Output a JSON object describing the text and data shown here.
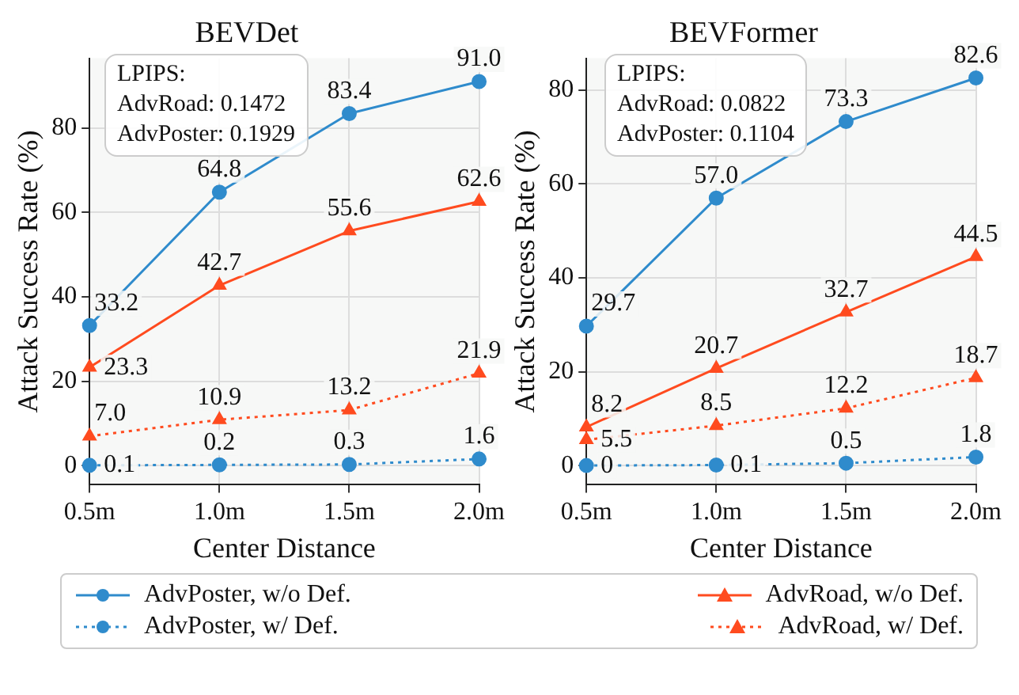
{
  "chart_data": [
    {
      "type": "line",
      "title": "BEVDet",
      "xlabel": "Center Distance",
      "ylabel": "Attack Success Rate (%)",
      "categories": [
        "0.5m",
        "1.0m",
        "1.5m",
        "2.0m"
      ],
      "ylim": [
        -4.5,
        96.5
      ],
      "yticks": [
        0,
        20,
        40,
        60,
        80
      ],
      "grid": true,
      "legend": "bottom",
      "data_labels": true,
      "annotations": [
        "LPIPS:\nAdvRoad: 0.1472\nAdvPoster: 0.1929"
      ],
      "series": [
        {
          "name": "AdvPoster, w/o Def.",
          "color": "#2f8bcc",
          "marker": "circle",
          "line_style": "solid",
          "values": [
            33.2,
            64.8,
            83.4,
            91.0
          ],
          "value_labels": [
            "33.2",
            "64.8",
            "83.4",
            "91.0"
          ]
        },
        {
          "name": "AdvPoster, w/ Def.",
          "color": "#2f8bcc",
          "marker": "circle",
          "line_style": "dotted",
          "values": [
            0.1,
            0.2,
            0.3,
            1.6
          ],
          "value_labels": [
            "0.1",
            "0.2",
            "0.3",
            "1.6"
          ]
        },
        {
          "name": "AdvRoad, w/o Def.",
          "color": "#ff4b1f",
          "marker": "triangle",
          "line_style": "solid",
          "values": [
            23.3,
            42.7,
            55.6,
            62.6
          ],
          "value_labels": [
            "23.3",
            "42.7",
            "55.6",
            "62.6"
          ]
        },
        {
          "name": "AdvRoad, w/ Def.",
          "color": "#ff4b1f",
          "marker": "triangle",
          "line_style": "dotted",
          "values": [
            7.0,
            10.9,
            13.2,
            21.9
          ],
          "value_labels": [
            "7.0",
            "10.9",
            "13.2",
            "21.9"
          ]
        }
      ]
    },
    {
      "type": "line",
      "title": "BEVFormer",
      "xlabel": "Center Distance",
      "ylabel": "Attack Success Rate (%)",
      "categories": [
        "0.5m",
        "1.0m",
        "1.5m",
        "2.0m"
      ],
      "ylim": [
        -4.1,
        86.8
      ],
      "yticks": [
        0,
        20,
        40,
        60,
        80
      ],
      "grid": true,
      "legend": "bottom",
      "data_labels": true,
      "annotations": [
        "LPIPS:\nAdvRoad: 0.0822\nAdvPoster: 0.1104"
      ],
      "series": [
        {
          "name": "AdvPoster, w/o Def.",
          "color": "#2f8bcc",
          "marker": "circle",
          "line_style": "solid",
          "values": [
            29.7,
            57.0,
            73.3,
            82.6
          ],
          "value_labels": [
            "29.7",
            "57.0",
            "73.3",
            "82.6"
          ]
        },
        {
          "name": "AdvPoster, w/ Def.",
          "color": "#2f8bcc",
          "marker": "circle",
          "line_style": "dotted",
          "values": [
            0,
            0.1,
            0.5,
            1.8
          ],
          "value_labels": [
            "0",
            "0.1",
            "0.5",
            "1.8"
          ]
        },
        {
          "name": "AdvRoad, w/o Def.",
          "color": "#ff4b1f",
          "marker": "triangle",
          "line_style": "solid",
          "values": [
            8.2,
            20.7,
            32.7,
            44.5
          ],
          "value_labels": [
            "8.2",
            "20.7",
            "32.7",
            "44.5"
          ]
        },
        {
          "name": "AdvRoad, w/ Def.",
          "color": "#ff4b1f",
          "marker": "triangle",
          "line_style": "dotted",
          "values": [
            5.5,
            8.5,
            12.2,
            18.7
          ],
          "value_labels": [
            "5.5",
            "8.5",
            "12.2",
            "18.7"
          ]
        }
      ]
    }
  ]
}
